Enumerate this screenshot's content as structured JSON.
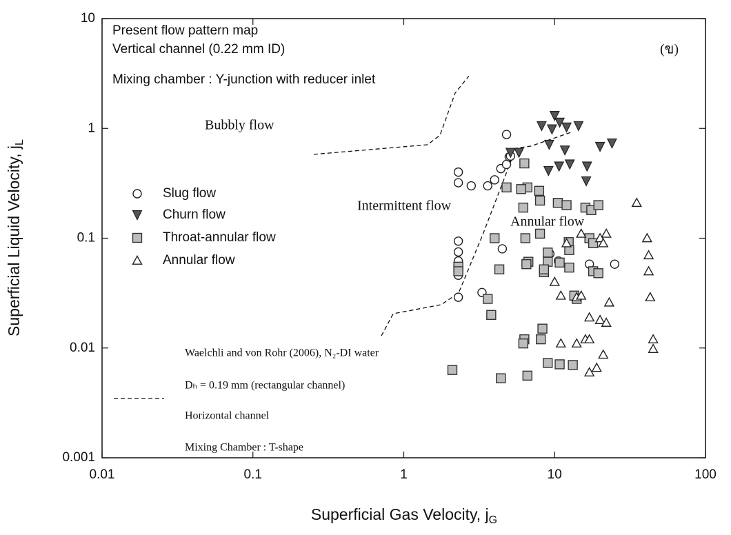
{
  "chart_data": {
    "type": "scatter",
    "xlog": true,
    "ylog": true,
    "xlim": [
      0.01,
      100
    ],
    "ylim": [
      0.001,
      10
    ],
    "xticks": [
      0.01,
      0.1,
      1,
      10,
      100
    ],
    "yticks": [
      0.001,
      0.01,
      0.1,
      1,
      10
    ],
    "xlabel": {
      "text": "Superficial Gas Velocity, j",
      "sub": "G"
    },
    "ylabel": {
      "text": "Superficial Liquid Velocity, j",
      "sub": "L"
    },
    "legend": "left",
    "notes": [
      "Present flow pattern map",
      "Vertical channel (0.22 mm ID)",
      "Mixing chamber : Y-junction with reducer inlet"
    ],
    "regions": [
      "Bubbly flow",
      "Intermittent flow",
      "Annular flow",
      "(ข)"
    ],
    "reference": [
      "Waelchli and von Rohr (2006), N₂-DI water",
      "Dₕ = 0.19 mm (rectangular channel)",
      "Horizontal channel",
      "Mixing Chamber : T-shape"
    ],
    "boundary_style": "dashed",
    "boundaries": [
      {
        "x": [
          0.253,
          1.44,
          1.74,
          2.19,
          2.7
        ],
        "y": [
          0.58,
          0.71,
          0.87,
          2.1,
          3.0
        ]
      },
      {
        "x": [
          0.71,
          0.85,
          1.77,
          2.31,
          3.34,
          5.53,
          6.97,
          12.8
        ],
        "y": [
          0.0129,
          0.0205,
          0.0248,
          0.0317,
          0.108,
          0.66,
          0.69,
          0.92
        ]
      }
    ],
    "series": [
      {
        "name": "Slug flow",
        "marker": "circle",
        "color": "#222222",
        "x": [
          2.3,
          2.3,
          2.3,
          2.3,
          2.3,
          2.3,
          2.3,
          2.8,
          3.3,
          3.6,
          4.0,
          4.4,
          4.8,
          5.0,
          5.1,
          4.5,
          4.8,
          9.3,
          10.6,
          17,
          25
        ],
        "y": [
          0.4,
          0.32,
          0.094,
          0.075,
          0.062,
          0.046,
          0.029,
          0.3,
          0.032,
          0.3,
          0.34,
          0.43,
          0.47,
          0.55,
          0.56,
          0.08,
          0.88,
          0.072,
          0.062,
          0.058,
          0.058
        ]
      },
      {
        "name": "Churn flow",
        "marker": "triangle-down",
        "color": "#555555",
        "x": [
          5.1,
          5.8,
          8.2,
          10,
          10.8,
          12,
          14.4,
          9.6,
          9.2,
          11.7,
          9.1,
          10.7,
          12.6,
          16.4,
          16.2,
          20,
          24
        ],
        "y": [
          0.6,
          0.6,
          1.05,
          1.3,
          1.13,
          1.02,
          1.05,
          0.98,
          0.71,
          0.63,
          0.41,
          0.45,
          0.47,
          0.45,
          0.33,
          0.68,
          0.73
        ]
      },
      {
        "name": "Throat-annular flow",
        "marker": "square",
        "color": "#bdbdbd",
        "x": [
          4.8,
          6.3,
          6.2,
          6.6,
          7.9,
          4.0,
          4.3,
          6.4,
          6.7,
          6.5,
          8.0,
          8.0,
          9.0,
          9.0,
          8.5,
          8.5,
          10.5,
          12.0,
          12.4,
          12.5,
          10.8,
          12.5,
          14,
          13.5,
          16,
          17.5,
          19.5,
          17,
          18,
          18,
          19.5,
          3.6,
          3.8,
          2.1,
          4.4,
          6.6,
          8.3,
          8.1,
          6.3,
          6.2,
          9.0,
          10.8,
          13.2,
          2.3,
          2.3,
          6.0
        ],
        "y": [
          0.29,
          0.48,
          0.19,
          0.29,
          0.27,
          0.1,
          0.052,
          0.1,
          0.061,
          0.058,
          0.11,
          0.22,
          0.074,
          0.061,
          0.049,
          0.052,
          0.21,
          0.2,
          0.092,
          0.078,
          0.06,
          0.054,
          0.028,
          0.03,
          0.19,
          0.18,
          0.2,
          0.1,
          0.09,
          0.05,
          0.048,
          0.028,
          0.02,
          0.0063,
          0.0053,
          0.0056,
          0.015,
          0.012,
          0.012,
          0.011,
          0.0073,
          0.0071,
          0.007,
          0.055,
          0.05,
          0.28
        ]
      },
      {
        "name": "Annular flow",
        "marker": "triangle-up",
        "color": "#222222",
        "x": [
          35,
          41,
          42,
          42,
          43,
          45,
          45,
          22,
          20,
          21,
          15,
          12,
          10,
          11,
          14,
          15,
          20,
          22,
          23,
          17,
          14,
          11,
          16,
          17,
          17,
          19,
          21
        ],
        "y": [
          0.21,
          0.1,
          0.07,
          0.05,
          0.029,
          0.012,
          0.0098,
          0.11,
          0.1,
          0.09,
          0.11,
          0.09,
          0.04,
          0.03,
          0.029,
          0.03,
          0.018,
          0.017,
          0.026,
          0.019,
          0.011,
          0.011,
          0.012,
          0.012,
          0.006,
          0.0066,
          0.0087
        ]
      }
    ]
  }
}
